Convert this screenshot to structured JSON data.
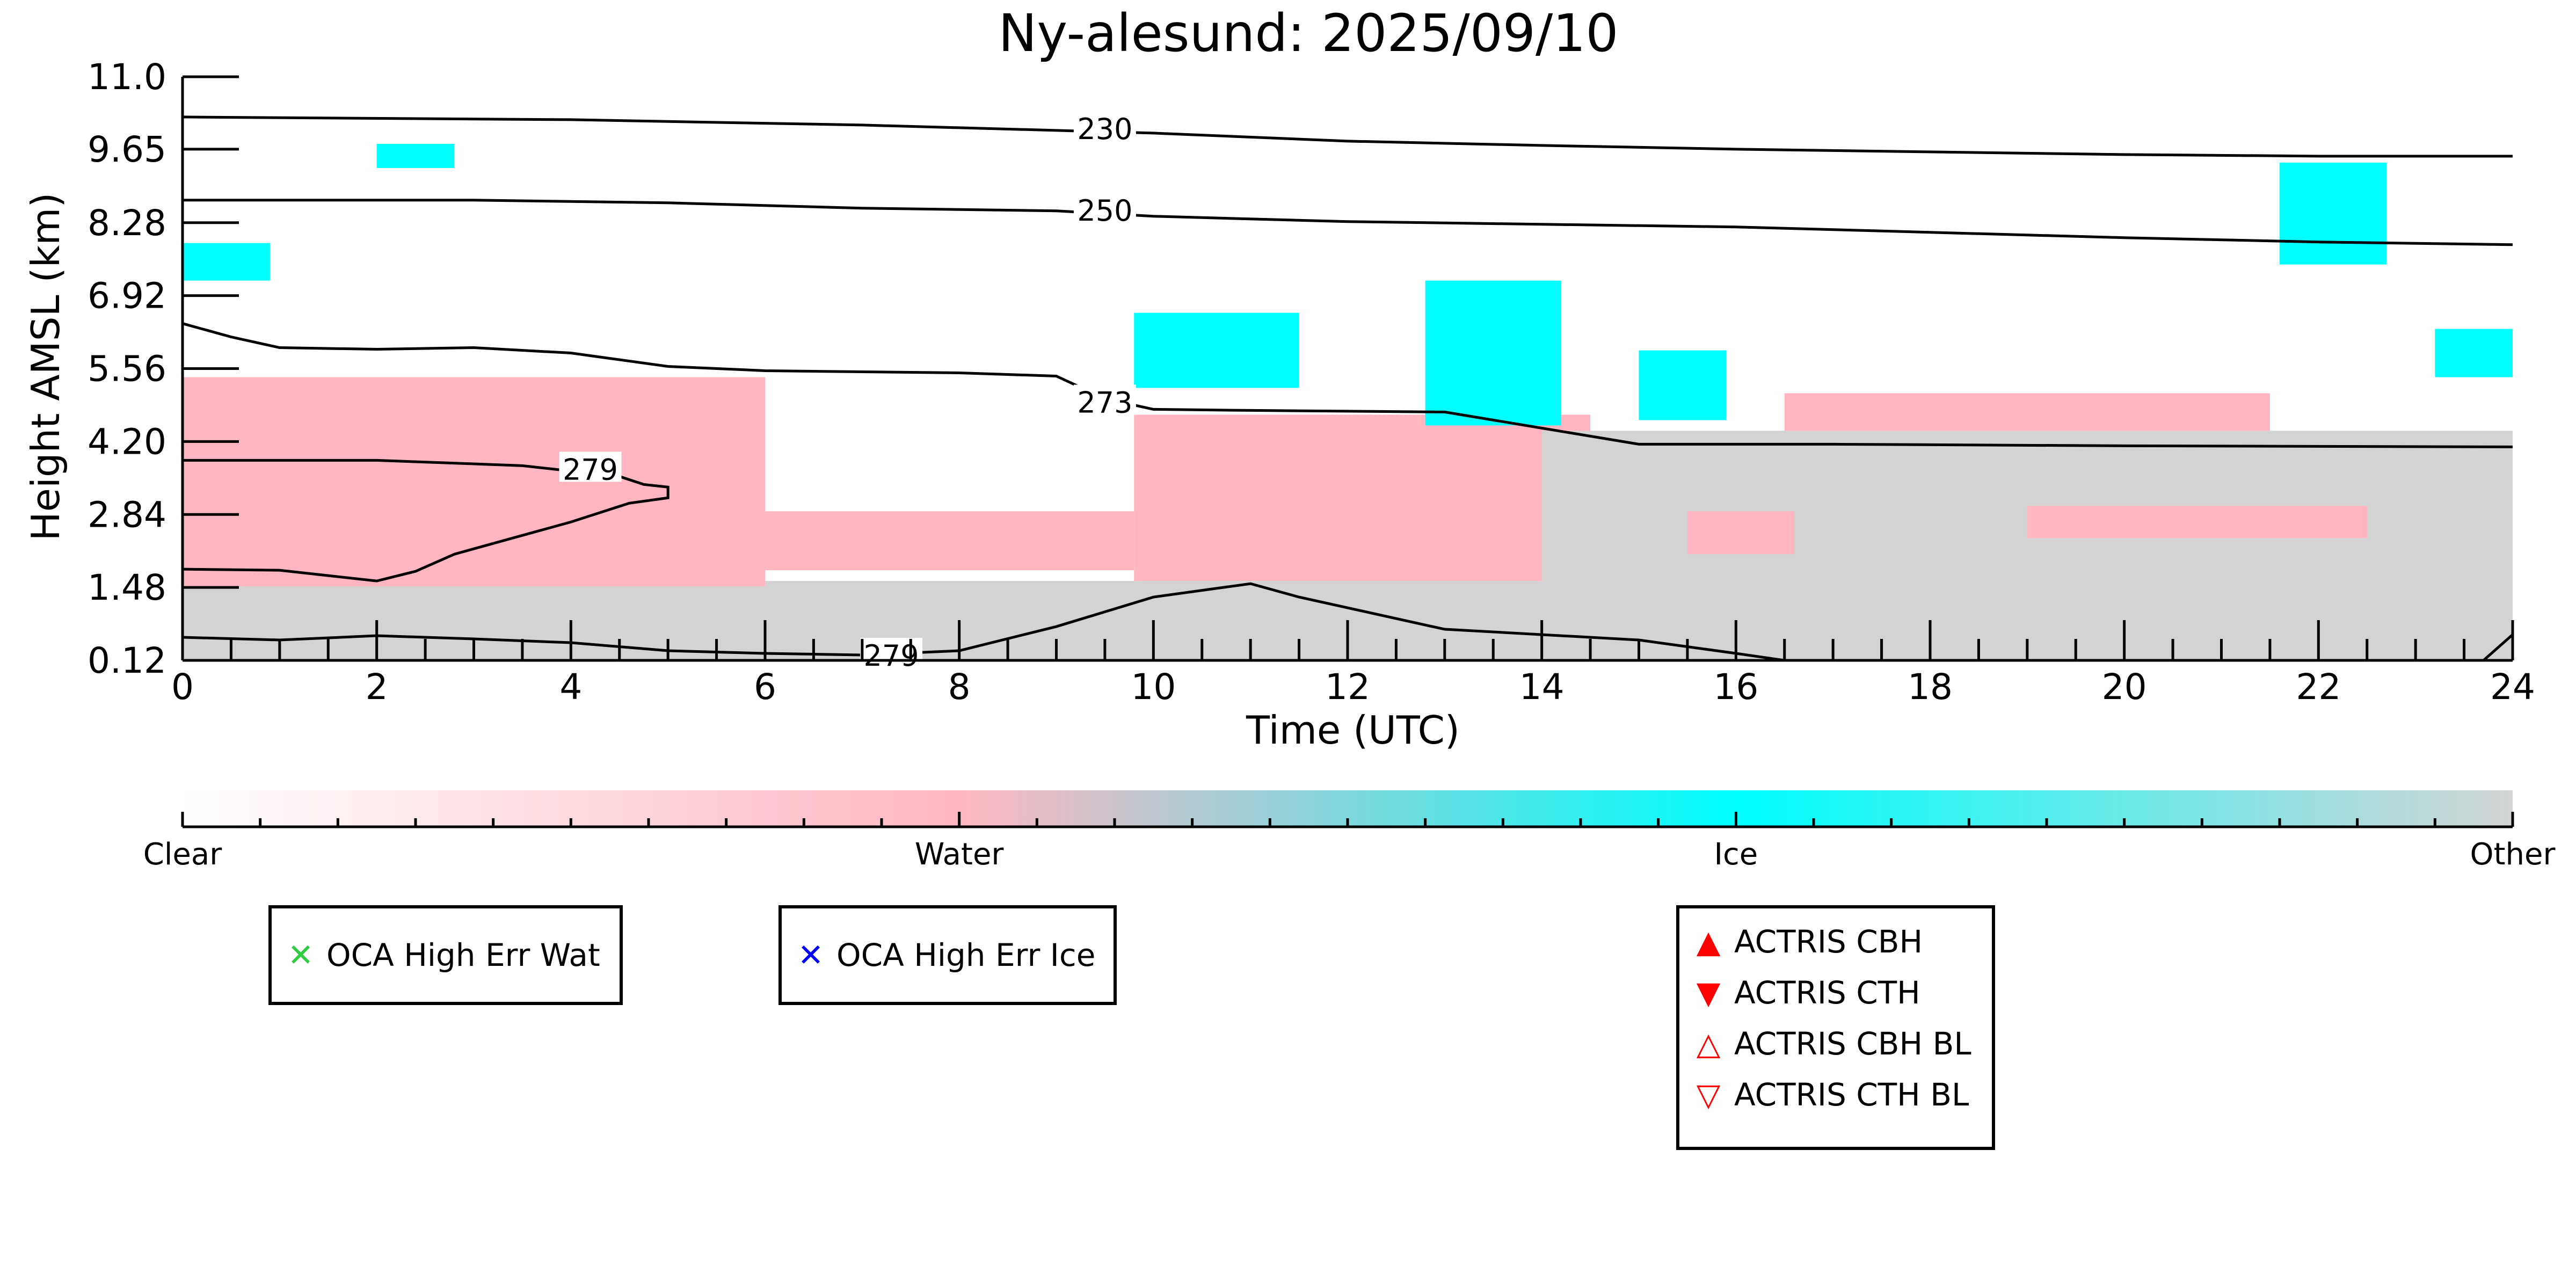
{
  "chart_data": {
    "type": "heatmap",
    "title": "Ny-alesund: 2025/09/10",
    "xlabel": "Time (UTC)",
    "ylabel": "Height AMSL (km)",
    "xlim": [
      0,
      24
    ],
    "ylim": [
      0.12,
      11.0
    ],
    "x_ticks": [
      0,
      2,
      4,
      6,
      8,
      10,
      12,
      14,
      16,
      18,
      20,
      22,
      24
    ],
    "x_tick_labels": [
      "0",
      "2",
      "4",
      "6",
      "8",
      "10",
      "12",
      "14",
      "16",
      "18",
      "20",
      "22",
      "24"
    ],
    "y_ticks": [
      0.12,
      1.48,
      2.84,
      4.2,
      5.56,
      6.92,
      8.28,
      9.65,
      11.0
    ],
    "y_tick_labels": [
      "0.12",
      "1.48",
      "2.84",
      "4.20",
      "5.56",
      "6.92",
      "8.28",
      "9.65",
      "11.0"
    ],
    "categories": [
      {
        "name": "Clear",
        "color": "#ffffff"
      },
      {
        "name": "Water",
        "color": "#ffb6c1"
      },
      {
        "name": "Ice",
        "color": "#00ffff"
      },
      {
        "name": "Other",
        "color": "#d3d3d3"
      }
    ],
    "regions": [
      {
        "category": "Other",
        "t": [
          0,
          24
        ],
        "h": [
          0.12,
          1.6
        ]
      },
      {
        "category": "Water",
        "t": [
          0,
          6.0
        ],
        "h": [
          1.5,
          5.4
        ]
      },
      {
        "category": "Water",
        "t": [
          6.0,
          9.8
        ],
        "h": [
          1.8,
          2.9
        ]
      },
      {
        "category": "Water",
        "t": [
          9.8,
          14.5
        ],
        "h": [
          1.6,
          4.7
        ]
      },
      {
        "category": "Other",
        "t": [
          14.0,
          24
        ],
        "h": [
          1.6,
          4.4
        ]
      },
      {
        "category": "Water",
        "t": [
          15.5,
          16.6
        ],
        "h": [
          2.1,
          2.9
        ]
      },
      {
        "category": "Water",
        "t": [
          19.0,
          22.5
        ],
        "h": [
          2.4,
          3.0
        ]
      },
      {
        "category": "Ice",
        "t": [
          9.8,
          11.5
        ],
        "h": [
          5.2,
          6.6
        ]
      },
      {
        "category": "Ice",
        "t": [
          12.8,
          14.2
        ],
        "h": [
          4.5,
          7.2
        ]
      },
      {
        "category": "Ice",
        "t": [
          15.0,
          15.9
        ],
        "h": [
          4.6,
          5.9
        ]
      },
      {
        "category": "Ice",
        "t": [
          21.6,
          22.7
        ],
        "h": [
          7.5,
          9.4
        ]
      },
      {
        "category": "Ice",
        "t": [
          0.0,
          0.9
        ],
        "h": [
          7.2,
          7.9
        ]
      },
      {
        "category": "Ice",
        "t": [
          2.0,
          2.8
        ],
        "h": [
          9.3,
          9.75
        ]
      },
      {
        "category": "Ice",
        "t": [
          23.2,
          24
        ],
        "h": [
          5.4,
          6.3
        ]
      },
      {
        "category": "Water",
        "t": [
          16.5,
          21.5
        ],
        "h": [
          4.4,
          5.1
        ]
      }
    ],
    "contours": [
      {
        "label": "230",
        "t": [
          0,
          4,
          7,
          9,
          10,
          12,
          14,
          16,
          18,
          20,
          22,
          24
        ],
        "h": [
          10.25,
          10.2,
          10.1,
          10.0,
          9.95,
          9.8,
          9.72,
          9.65,
          9.6,
          9.55,
          9.52,
          9.52
        ],
        "label_at": [
          9.5,
          10.0
        ]
      },
      {
        "label": "250",
        "t": [
          0,
          3,
          5,
          7,
          9,
          10,
          12,
          14,
          16,
          18,
          20,
          22,
          24
        ],
        "h": [
          8.7,
          8.7,
          8.65,
          8.55,
          8.5,
          8.4,
          8.3,
          8.25,
          8.2,
          8.1,
          8.0,
          7.92,
          7.87
        ],
        "label_at": [
          9.5,
          8.48
        ]
      },
      {
        "label": "273",
        "t": [
          0,
          0.5,
          1,
          2,
          3,
          4,
          5,
          6,
          7,
          8,
          9,
          9.5,
          10,
          11,
          13,
          14,
          15,
          17,
          20,
          24
        ],
        "h": [
          6.4,
          6.15,
          5.95,
          5.92,
          5.95,
          5.85,
          5.6,
          5.52,
          5.5,
          5.48,
          5.42,
          5.0,
          4.8,
          4.78,
          4.75,
          4.45,
          4.15,
          4.15,
          4.12,
          4.1
        ],
        "label_at": [
          9.5,
          4.9
        ]
      },
      {
        "label": "279",
        "t": [
          0,
          2,
          3.5,
          4.5,
          4.75,
          5.0,
          5.0,
          4.6,
          4.0,
          3.5,
          2.8,
          2.4,
          2.0,
          1.5,
          1.0,
          0
        ],
        "h": [
          3.85,
          3.85,
          3.75,
          3.55,
          3.4,
          3.35,
          3.15,
          3.05,
          2.7,
          2.45,
          2.1,
          1.78,
          1.6,
          1.7,
          1.8,
          1.82
        ],
        "label_at": [
          4.2,
          3.65
        ]
      },
      {
        "label": "279",
        "t": [
          0,
          1,
          2,
          3,
          4,
          5,
          6,
          7,
          8,
          9,
          10,
          11,
          11.5,
          13,
          15,
          16,
          16.5
        ],
        "h": [
          0.55,
          0.5,
          0.58,
          0.52,
          0.45,
          0.3,
          0.25,
          0.22,
          0.3,
          0.75,
          1.3,
          1.55,
          1.3,
          0.7,
          0.5,
          0.25,
          0.12
        ],
        "label_at": [
          7.3,
          0.18
        ]
      },
      {
        "label": "",
        "t": [
          23.7,
          24
        ],
        "h": [
          0.12,
          0.6
        ]
      }
    ],
    "colorbar": {
      "labels": [
        "Clear",
        "Water",
        "Ice",
        "Other"
      ]
    },
    "legends": [
      {
        "entries": [
          {
            "label": "OCA High Err Wat",
            "marker": "x",
            "color": "#2ecc40"
          }
        ]
      },
      {
        "entries": [
          {
            "label": "OCA High Err Ice",
            "marker": "x",
            "color": "#0000ff"
          }
        ]
      },
      {
        "entries": [
          {
            "label": "ACTRIS CBH",
            "marker": "triangle-up",
            "color": "#ff0000"
          },
          {
            "label": "ACTRIS CTH",
            "marker": "triangle-down",
            "color": "#ff0000"
          },
          {
            "label": "ACTRIS CBH BL",
            "marker": "triangle-up-open",
            "color": "#ff0000"
          },
          {
            "label": "ACTRIS CTH BL",
            "marker": "triangle-down-open",
            "color": "#ff0000"
          }
        ]
      }
    ]
  }
}
